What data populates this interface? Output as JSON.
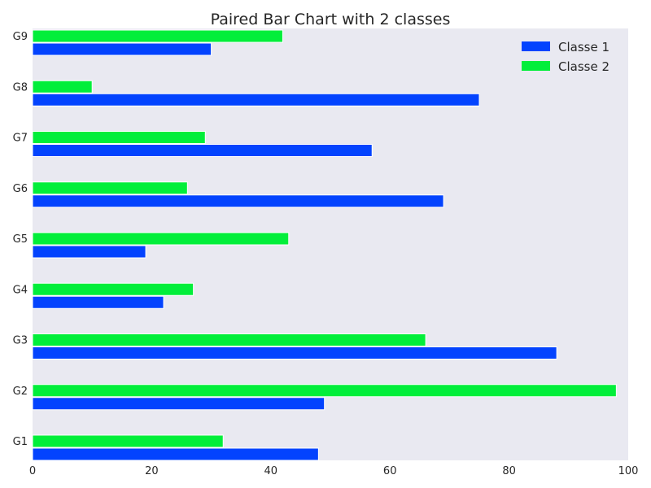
{
  "chart_data": {
    "type": "bar",
    "orientation": "horizontal",
    "title": "Paired Bar Chart with 2 classes",
    "xlabel": "",
    "ylabel": "",
    "categories": [
      "G1",
      "G2",
      "G3",
      "G4",
      "G5",
      "G6",
      "G7",
      "G8",
      "G9"
    ],
    "series": [
      {
        "name": "Classe 1",
        "color": "#0343fe",
        "values": [
          48,
          49,
          88,
          22,
          19,
          69,
          57,
          75,
          30
        ]
      },
      {
        "name": "Classe 2",
        "color": "#02ee3a",
        "values": [
          32,
          98,
          66,
          27,
          43,
          26,
          29,
          10,
          42
        ]
      }
    ],
    "xlim": [
      0,
      100
    ],
    "xticks": [
      0,
      20,
      40,
      60,
      80,
      100
    ],
    "grid": false,
    "legend_position": "top-right",
    "background": "#e9e9f1"
  }
}
